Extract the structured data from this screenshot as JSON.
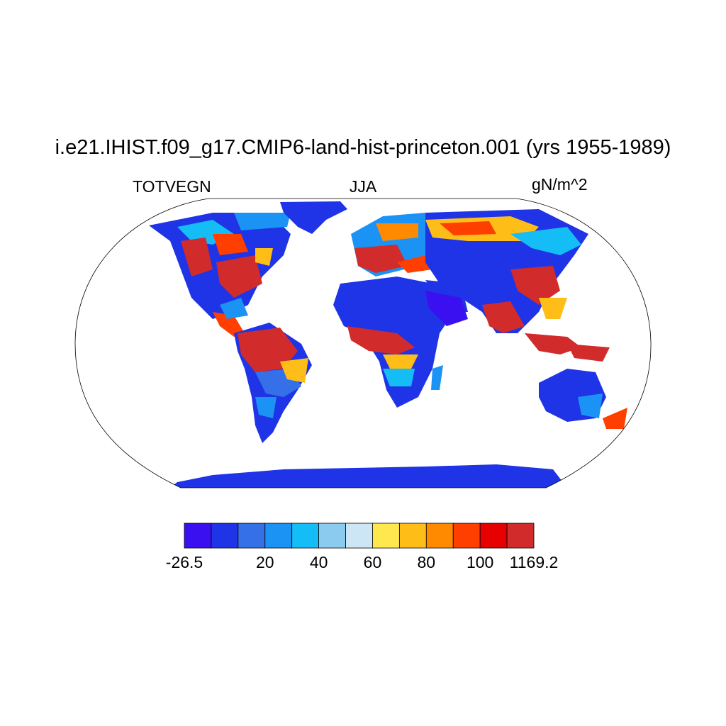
{
  "header": {
    "title": "i.e21.IHIST.f09_g17.CMIP6-land-hist-princeton.001 (yrs 1955-1989)",
    "variable": "TOTVEGN",
    "season": "JJA",
    "units": "gN/m^2"
  },
  "colorbar": {
    "colors": [
      "#3b10f0",
      "#1e34e6",
      "#3570e8",
      "#1b93f5",
      "#15bdf7",
      "#8ccbf0",
      "#cce6f5",
      "#ffe84d",
      "#ffbd17",
      "#ff8a00",
      "#ff3f00",
      "#e60000",
      "#d22b2b"
    ],
    "labels": [
      {
        "text": "-26.5",
        "boundary": 0
      },
      {
        "text": "20",
        "boundary": 3
      },
      {
        "text": "40",
        "boundary": 5
      },
      {
        "text": "60",
        "boundary": 7
      },
      {
        "text": "80",
        "boundary": 9
      },
      {
        "text": "100",
        "boundary": 11
      },
      {
        "text": "1169.2",
        "boundary": 13
      }
    ]
  },
  "map": {
    "projection": "Robinson",
    "land_color_default": "#1e34e6",
    "coastline_color": "#000000"
  }
}
